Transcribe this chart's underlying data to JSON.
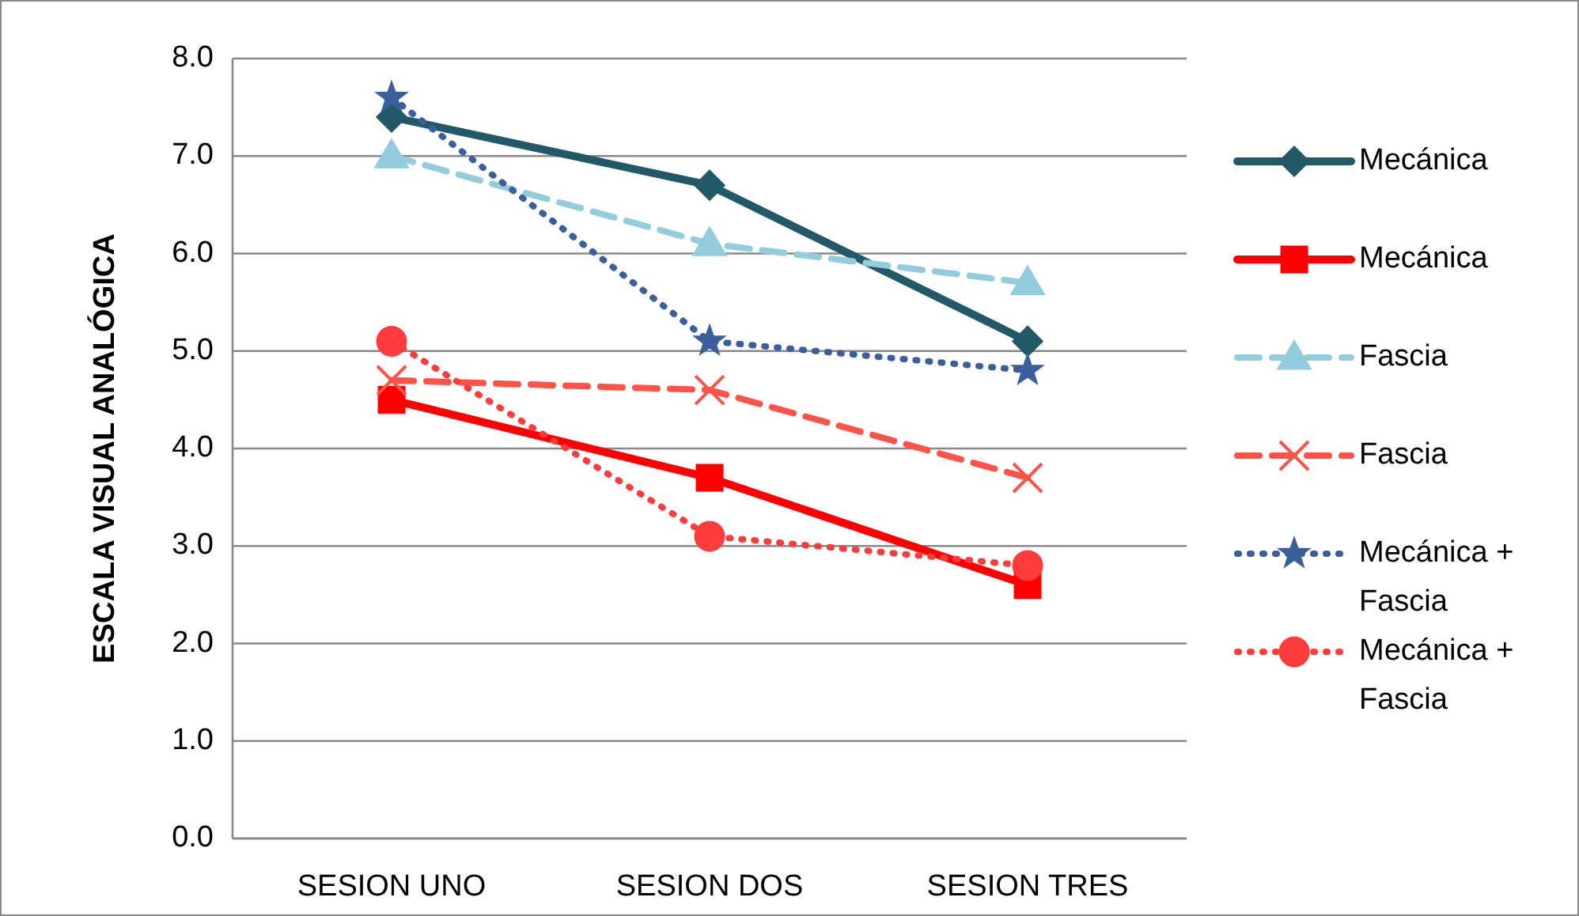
{
  "chart_data": {
    "type": "line",
    "ylabel": "ESCALA VISUAL ANALÓGICA",
    "categories": [
      "SESION UNO",
      "SESION DOS",
      "SESION TRES"
    ],
    "ylim": [
      0,
      8
    ],
    "yticks": [
      {
        "value": 0,
        "label": "0.0"
      },
      {
        "value": 1,
        "label": "1.0"
      },
      {
        "value": 2,
        "label": "2.0"
      },
      {
        "value": 3,
        "label": "3.0"
      },
      {
        "value": 4,
        "label": "4.0"
      },
      {
        "value": 5,
        "label": "5.0"
      },
      {
        "value": 6,
        "label": "6.0"
      },
      {
        "value": 7,
        "label": "7.0"
      },
      {
        "value": 8,
        "label": "8.0"
      }
    ],
    "grid": "y",
    "legend": "right",
    "series": [
      {
        "name": "Mecánica",
        "color": "#215968",
        "values": [
          7.4,
          6.7,
          5.1
        ],
        "marker": "diamond",
        "line_style": "solid"
      },
      {
        "name": "Mecánica",
        "color": "#ff0000",
        "values": [
          4.5,
          3.7,
          2.6
        ],
        "marker": "square",
        "line_style": "solid"
      },
      {
        "name": "Fascia",
        "color": "#93cddd",
        "values": [
          7.0,
          6.1,
          5.7
        ],
        "marker": "triangle",
        "line_style": "dashed"
      },
      {
        "name": "Fascia",
        "color": "#ff5347",
        "values": [
          4.7,
          4.6,
          3.7
        ],
        "marker": "cross",
        "line_style": "dashed"
      },
      {
        "name": "Mecánica + Fascia",
        "color": "#3a5f9a",
        "values": [
          7.6,
          5.1,
          4.8
        ],
        "marker": "star",
        "line_style": "dotted"
      },
      {
        "name": "Mecánica + Fascia",
        "color": "#ff3b3b",
        "values": [
          5.1,
          3.1,
          2.8
        ],
        "marker": "circle",
        "line_style": "dotted"
      }
    ]
  }
}
